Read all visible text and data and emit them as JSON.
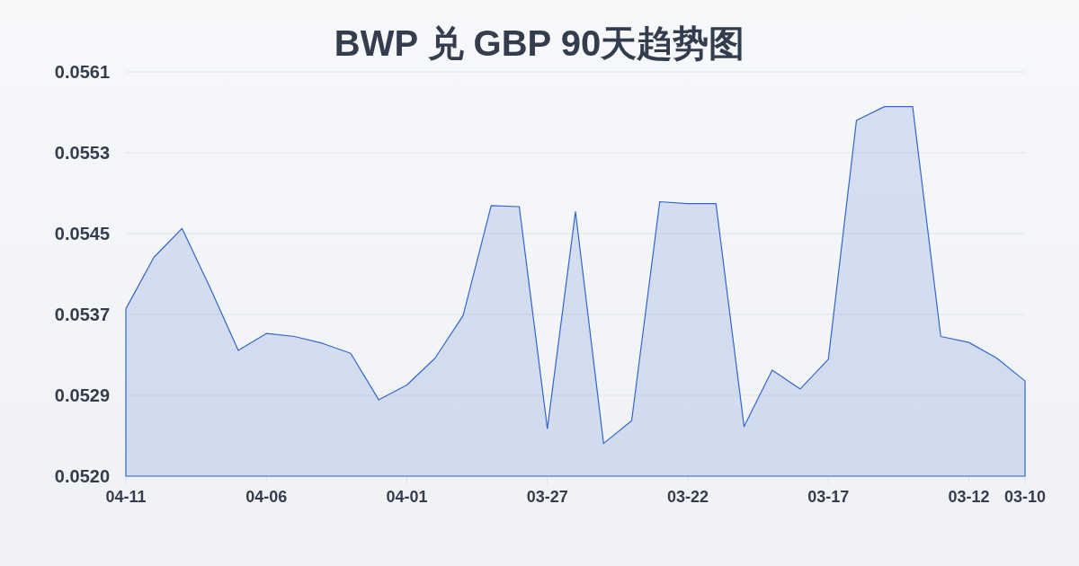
{
  "chart_data": {
    "type": "area",
    "title": "BWP 兑 GBP 90天趋势图",
    "categories": [
      "04-11",
      null,
      null,
      null,
      null,
      "04-06",
      null,
      null,
      null,
      null,
      "04-01",
      null,
      null,
      null,
      null,
      "03-27",
      null,
      null,
      null,
      null,
      "03-22",
      null,
      null,
      null,
      null,
      "03-17",
      null,
      null,
      null,
      null,
      "03-12",
      null,
      "03-10"
    ],
    "series": [
      {
        "color": "#3366cc",
        "values": [
          0.05373,
          0.05425,
          0.05454,
          0.05394,
          0.05331,
          0.05348,
          0.05345,
          0.05338,
          0.05328,
          0.05281,
          0.05296,
          0.05323,
          0.05366,
          0.05477,
          0.05476,
          0.05252,
          0.05471,
          0.05237,
          0.0526,
          0.05481,
          0.05479,
          0.05479,
          0.05254,
          0.05311,
          0.05292,
          0.05322,
          0.05563,
          0.05577,
          0.05577,
          0.05345,
          0.05339,
          0.05323,
          0.053
        ]
      }
    ],
    "ylim": [
      0.05204,
      0.05612
    ],
    "yticks": [
      {
        "value": 0.05204,
        "label": "0.0520"
      },
      {
        "value": 0.052856,
        "label": "0.0529"
      },
      {
        "value": 0.053672,
        "label": "0.0537"
      },
      {
        "value": 0.054488,
        "label": "0.0545"
      },
      {
        "value": 0.055304,
        "label": "0.0553"
      },
      {
        "value": 0.05612,
        "label": "0.0561"
      }
    ],
    "grid": "y"
  }
}
